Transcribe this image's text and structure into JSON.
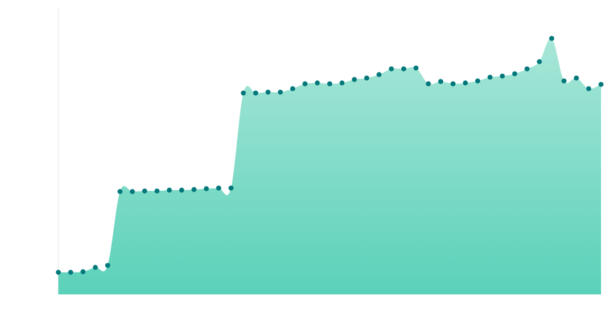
{
  "chart_data": {
    "type": "area",
    "color": "#5dd0b8",
    "marker_color": "#00777a",
    "x": [
      0,
      1,
      2,
      3,
      4,
      5,
      6,
      7,
      8,
      9,
      10,
      11,
      12,
      13,
      14,
      15,
      16,
      17,
      18,
      19,
      20,
      21,
      22,
      23,
      24,
      25,
      26,
      27,
      28,
      29,
      30,
      31,
      32,
      33,
      34,
      35,
      36,
      37,
      38,
      39,
      40,
      41,
      42,
      43,
      44
    ],
    "values": [
      7.7,
      7.7,
      7.9,
      9.4,
      10.1,
      35.8,
      35.8,
      36.0,
      36.0,
      36.3,
      36.3,
      36.5,
      36.8,
      37.0,
      37.0,
      70.1,
      70.1,
      70.4,
      70.4,
      71.6,
      73.3,
      73.6,
      73.3,
      73.6,
      74.8,
      75.3,
      76.5,
      78.5,
      78.5,
      78.8,
      73.3,
      74.1,
      73.3,
      73.6,
      74.3,
      75.6,
      76.0,
      76.8,
      78.5,
      81.0,
      89.1,
      74.3,
      75.3,
      71.6,
      73.1
    ],
    "xlim": [
      0,
      44
    ],
    "ylim": [
      0,
      100
    ]
  }
}
